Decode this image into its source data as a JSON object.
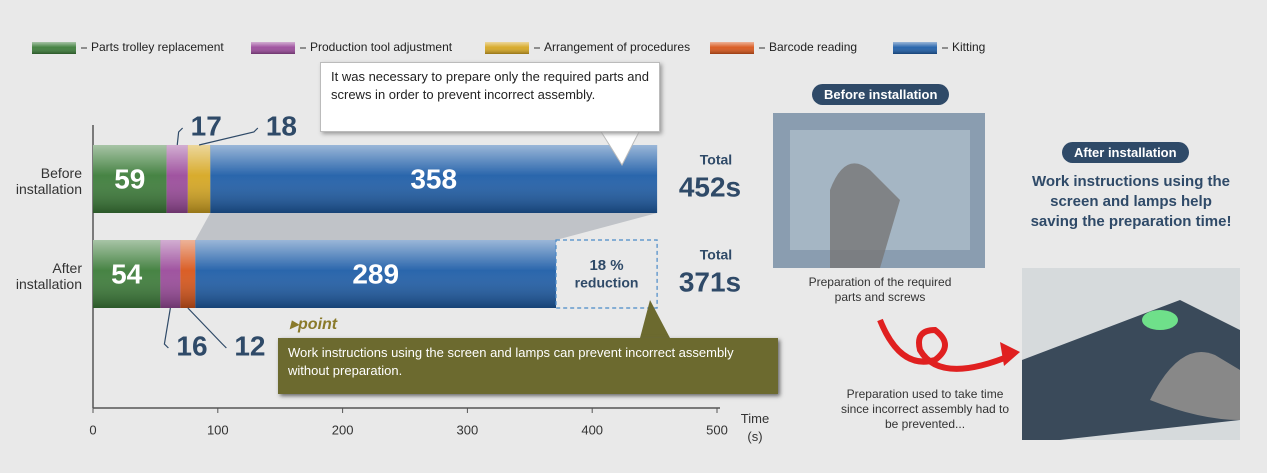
{
  "chart_data": {
    "type": "stacked_barh",
    "categories": [
      "Before installation",
      "After installation"
    ],
    "series": [
      {
        "name": "Parts trolley replacement",
        "color": "#3d7d3a",
        "values": [
          59,
          54
        ]
      },
      {
        "name": "Production tool adjustment",
        "color": "#9b4b9b",
        "values": [
          17,
          16
        ]
      },
      {
        "name": "Arrangement of procedures",
        "color": "#d6a722",
        "values": [
          18,
          null
        ]
      },
      {
        "name": "Barcode reading",
        "color": "#d8561b",
        "values": [
          null,
          12
        ]
      },
      {
        "name": "Kitting",
        "color": "#1f5ea8",
        "values": [
          358,
          289
        ]
      }
    ],
    "xlim": [
      0,
      500
    ],
    "xticks": [
      0,
      100,
      200,
      300,
      400,
      500
    ],
    "x_label": "Time (s)",
    "total_caption": [
      "Total",
      "Total"
    ],
    "total_labels": [
      "452s",
      "371s"
    ],
    "reduction_label": "18 %",
    "reduction_caption": "reduction",
    "annotations": {
      "callout_top": "It was necessary to prepare only the required parts and screws in order to prevent incorrect assembly.",
      "point_title": "point",
      "point_text": "Work instructions using the screen and lamps can prevent incorrect assembly without preparation.",
      "before_badge": "Before installation",
      "after_badge": "After installation",
      "after_headline": "Work instructions using the screen and lamps help saving the preparation time!",
      "before_caption": "Preparation of the required parts and screws",
      "bottom_caption": "Preparation used to take time since incorrect assembly had to be prevented..."
    }
  }
}
